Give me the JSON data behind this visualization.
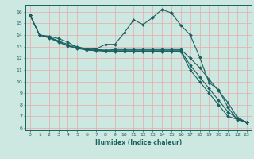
{
  "xlabel": "Humidex (Indice chaleur)",
  "bg_color": "#cce8e0",
  "grid_color_v": "#e8a8a8",
  "grid_color_h": "#e8a8a8",
  "line_color": "#1a6060",
  "xlim": [
    -0.5,
    23.5
  ],
  "ylim": [
    5.8,
    16.6
  ],
  "yticks": [
    6,
    7,
    8,
    9,
    10,
    11,
    12,
    13,
    14,
    15,
    16
  ],
  "xticks": [
    0,
    1,
    2,
    3,
    4,
    5,
    6,
    7,
    8,
    9,
    10,
    11,
    12,
    13,
    14,
    15,
    16,
    17,
    18,
    19,
    20,
    21,
    22,
    23
  ],
  "lines": [
    {
      "x": [
        0,
        1,
        2,
        3,
        4,
        5,
        6,
        7,
        8,
        9,
        10,
        11,
        12,
        13,
        14,
        15,
        16,
        17,
        18,
        19,
        20,
        21,
        22,
        23
      ],
      "y": [
        15.7,
        14.0,
        13.9,
        13.7,
        13.4,
        12.9,
        12.85,
        12.8,
        13.2,
        13.2,
        14.2,
        15.3,
        14.9,
        15.5,
        16.2,
        15.9,
        14.85,
        14.0,
        12.1,
        9.9,
        9.3,
        7.8,
        6.7,
        6.5
      ]
    },
    {
      "x": [
        0,
        1,
        2,
        3,
        4,
        5,
        6,
        7,
        8,
        9,
        10,
        11,
        12,
        13,
        14,
        15,
        16,
        17,
        18,
        19,
        20,
        21,
        22,
        23
      ],
      "y": [
        15.7,
        14.0,
        13.85,
        13.5,
        13.2,
        13.0,
        12.8,
        12.75,
        12.7,
        12.75,
        12.75,
        12.75,
        12.75,
        12.75,
        12.75,
        12.75,
        12.75,
        12.0,
        11.2,
        10.2,
        9.2,
        8.2,
        6.9,
        6.5
      ]
    },
    {
      "x": [
        0,
        1,
        2,
        3,
        4,
        5,
        6,
        7,
        8,
        9,
        10,
        11,
        12,
        13,
        14,
        15,
        16,
        17,
        18,
        19,
        20,
        21,
        22,
        23
      ],
      "y": [
        15.7,
        14.0,
        13.8,
        13.45,
        13.1,
        12.9,
        12.75,
        12.7,
        12.65,
        12.65,
        12.65,
        12.65,
        12.65,
        12.65,
        12.65,
        12.65,
        12.65,
        11.4,
        10.4,
        9.4,
        8.4,
        7.4,
        6.8,
        6.5
      ]
    },
    {
      "x": [
        0,
        1,
        2,
        3,
        4,
        5,
        6,
        7,
        8,
        9,
        10,
        11,
        12,
        13,
        14,
        15,
        16,
        17,
        18,
        19,
        20,
        21,
        22,
        23
      ],
      "y": [
        15.7,
        14.0,
        13.75,
        13.4,
        13.05,
        12.85,
        12.7,
        12.65,
        12.6,
        12.6,
        12.6,
        12.6,
        12.6,
        12.6,
        12.6,
        12.6,
        12.6,
        11.0,
        10.0,
        9.0,
        8.0,
        7.0,
        6.75,
        6.5
      ]
    }
  ]
}
